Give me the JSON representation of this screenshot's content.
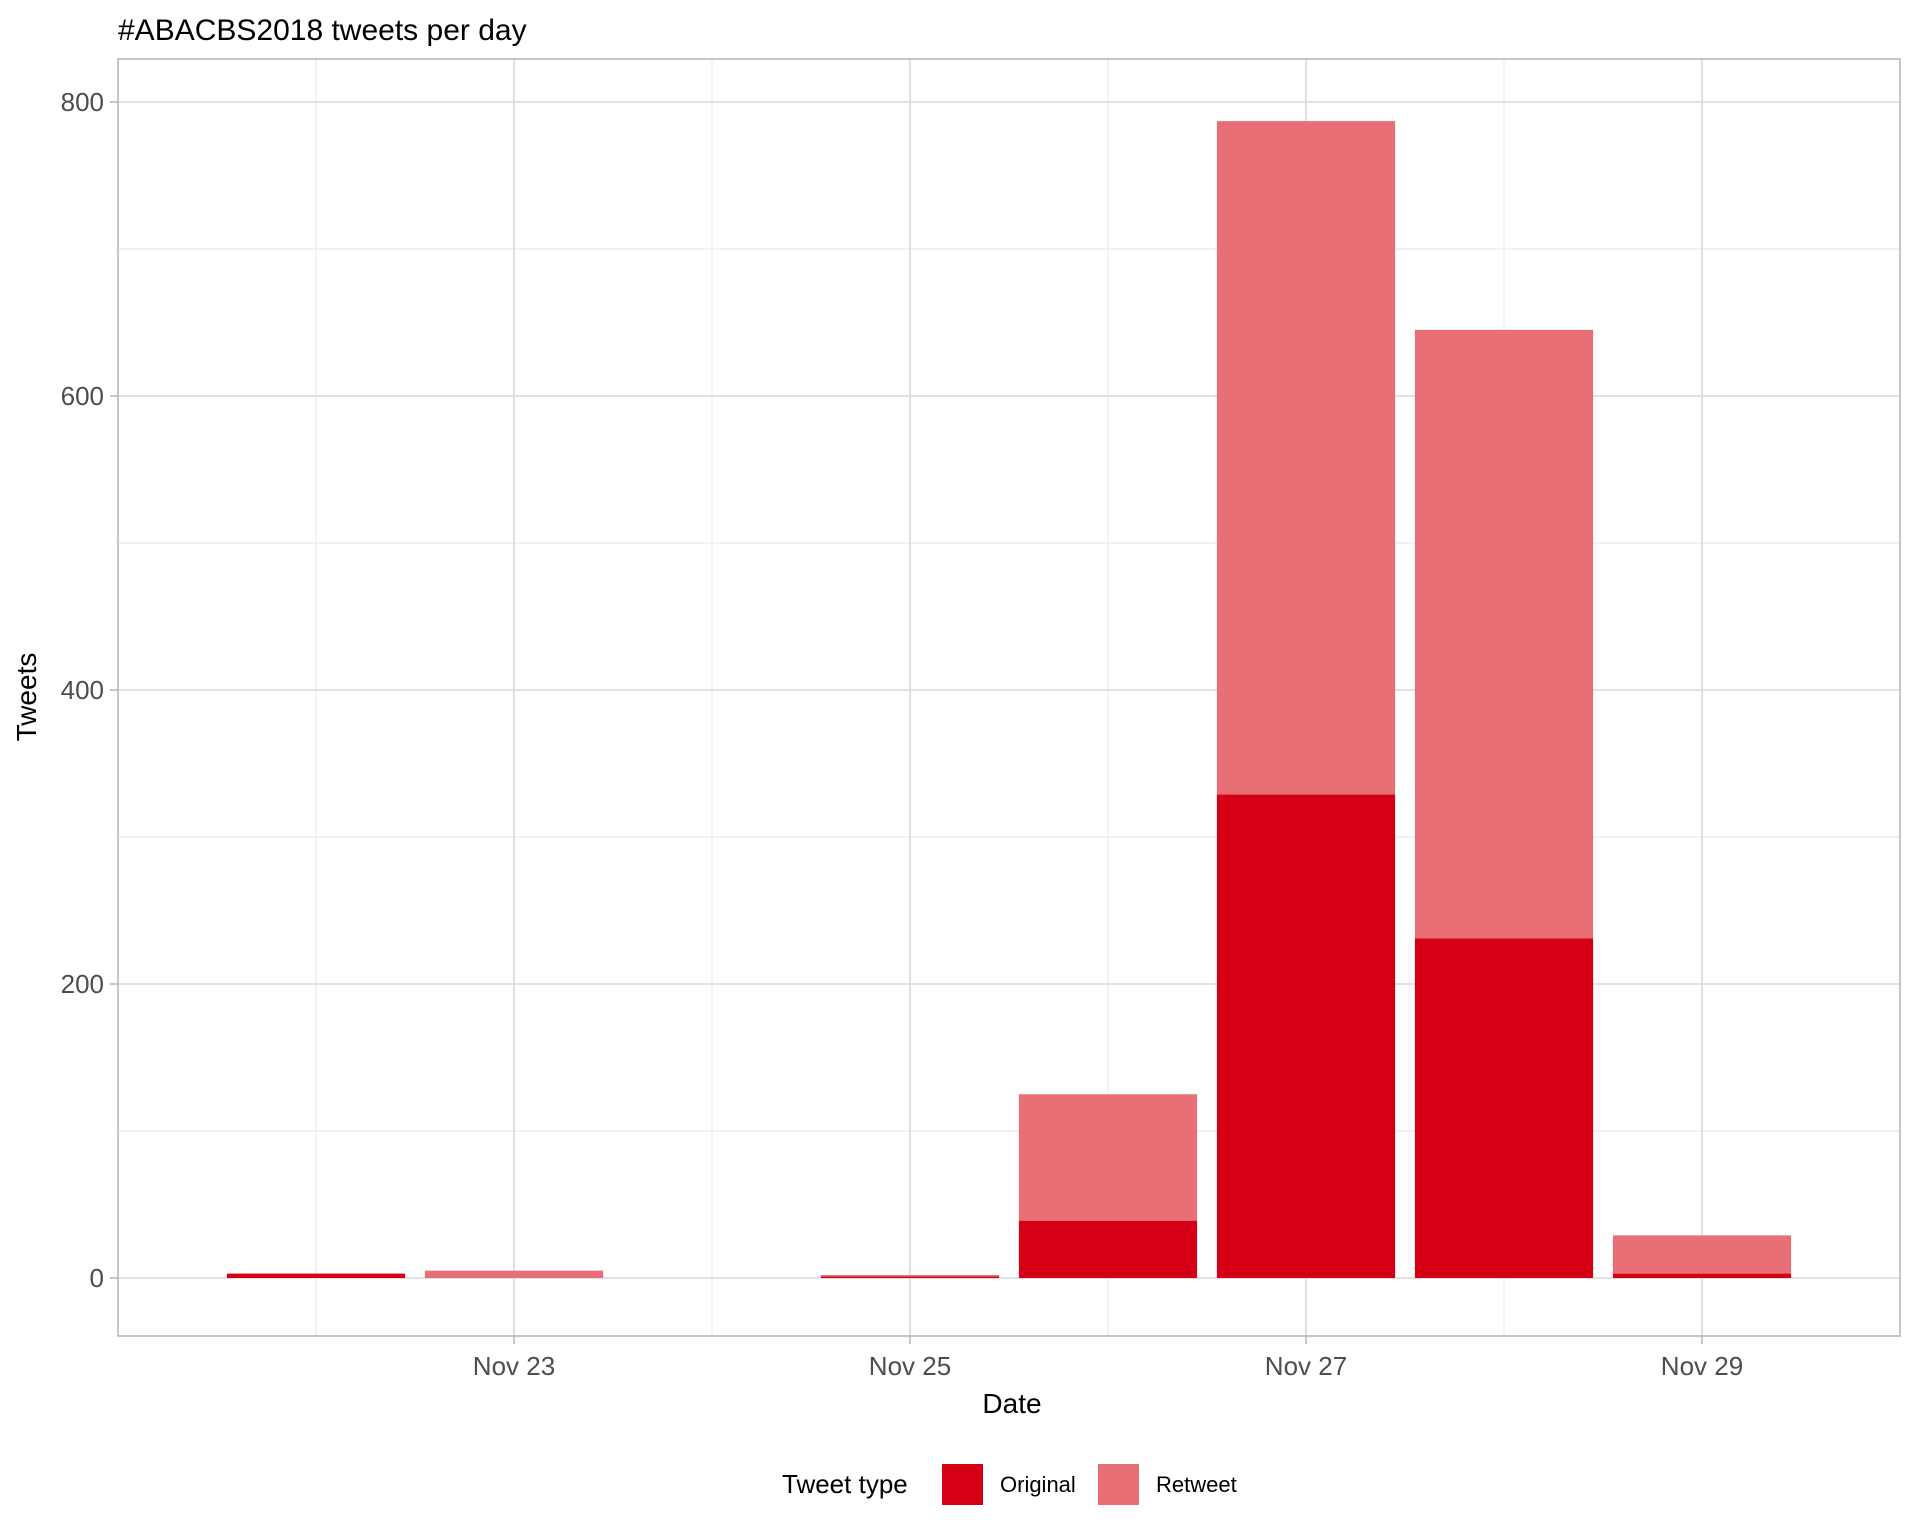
{
  "chart_data": {
    "type": "bar",
    "stacked": true,
    "title": "#ABACBS2018 tweets per day",
    "xlabel": "Date",
    "ylabel": "Tweets",
    "x": [
      "2018-11-22",
      "2018-11-23",
      "2018-11-24",
      "2018-11-25",
      "2018-11-26",
      "2018-11-27",
      "2018-11-28",
      "2018-11-29"
    ],
    "x_ticks": [
      {
        "date": "2018-11-23",
        "label": "Nov 23"
      },
      {
        "date": "2018-11-25",
        "label": "Nov 25"
      },
      {
        "date": "2018-11-27",
        "label": "Nov 27"
      },
      {
        "date": "2018-11-29",
        "label": "Nov 29"
      }
    ],
    "xlim": [
      "2018-11-21",
      "2018-11-30"
    ],
    "ylim": [
      0,
      800
    ],
    "y_ticks": [
      0,
      200,
      400,
      600,
      800
    ],
    "grid": true,
    "legend_position": "bottom",
    "legend_title": "Tweet type",
    "series": [
      {
        "name": "Original",
        "color": "#d50016",
        "values": [
          3,
          0,
          0,
          1,
          39,
          329,
          231,
          3
        ]
      },
      {
        "name": "Retweet",
        "color": "#e86f76",
        "values": [
          0,
          5,
          0,
          1,
          86,
          458,
          414,
          26
        ]
      }
    ]
  }
}
